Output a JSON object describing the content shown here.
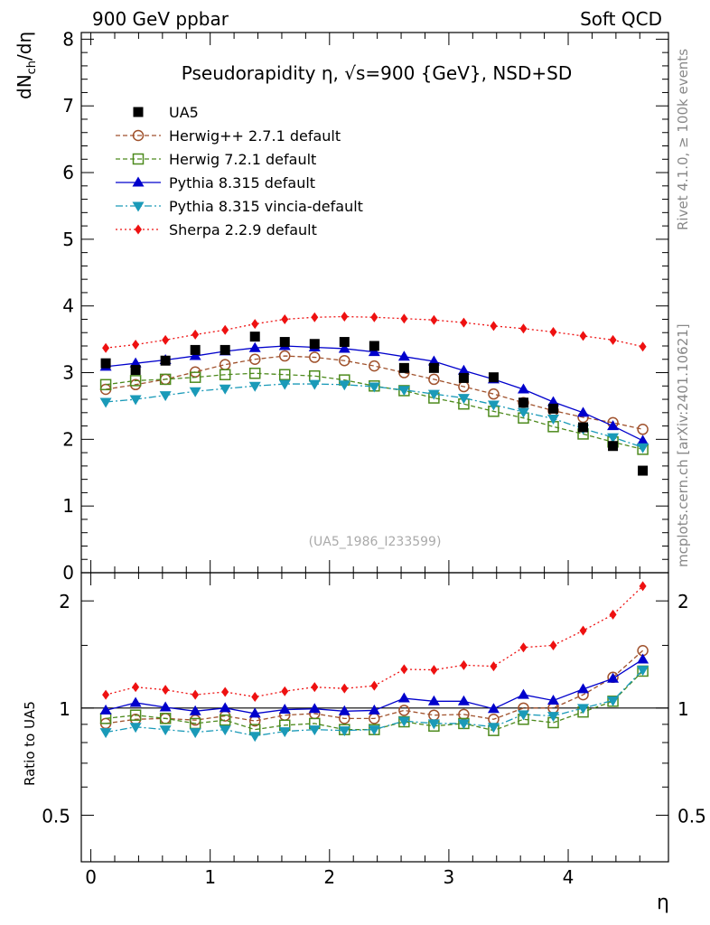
{
  "header": {
    "left": "900 GeV ppbar",
    "right": "Soft QCD"
  },
  "side_labels": {
    "rivet": "Rivet 4.1.0, ≥ 100k events",
    "mcplots": "mcplots.cern.ch [arXiv:2401.10621]"
  },
  "chart_data": {
    "type": "line",
    "title": "Pseudorapidity η, √s=900 {GeV}, NSD+SD",
    "watermark": "(UA5_1986_I233599)",
    "xlabel": "η",
    "ylabel": "dN",
    "ylabel_sub": "ch",
    "ylabel_tail": "/dη",
    "ratio_ylabel": "Ratio to UA5",
    "xlim": [
      -0.08,
      4.84
    ],
    "ylim": [
      0,
      8.1
    ],
    "x_ticks": [
      "0",
      "1",
      "2",
      "3",
      "4"
    ],
    "y_ticks": [
      "0",
      "1",
      "2",
      "3",
      "4",
      "5",
      "6",
      "7",
      "8"
    ],
    "ratio_ticks": [
      "2",
      "1",
      "0.5"
    ],
    "x": [
      0.125,
      0.375,
      0.625,
      0.875,
      1.125,
      1.375,
      1.625,
      1.875,
      2.125,
      2.375,
      2.625,
      2.875,
      3.125,
      3.375,
      3.625,
      3.875,
      4.125,
      4.375,
      4.625
    ],
    "series": [
      {
        "name": "UA5",
        "color": "#000000",
        "marker": "square",
        "dash": "none",
        "values": [
          3.14,
          3.04,
          3.18,
          3.34,
          3.34,
          3.54,
          3.46,
          3.43,
          3.46,
          3.4,
          3.07,
          3.07,
          2.92,
          2.93,
          2.55,
          2.46,
          2.18,
          1.9,
          1.53
        ]
      },
      {
        "name": "Herwig++ 2.7.1 default",
        "color": "#a0522d",
        "marker": "open-circle",
        "dash": "5,3",
        "values": [
          2.75,
          2.82,
          2.9,
          3.01,
          3.12,
          3.2,
          3.25,
          3.23,
          3.18,
          3.1,
          3.0,
          2.9,
          2.79,
          2.68,
          2.55,
          2.43,
          2.33,
          2.25,
          2.15
        ]
      },
      {
        "name": "Herwig 7.2.1 default",
        "color": "#4d8a1d",
        "marker": "open-square",
        "dash": "5,3",
        "values": [
          2.82,
          2.88,
          2.9,
          2.93,
          2.97,
          2.99,
          2.97,
          2.95,
          2.89,
          2.8,
          2.73,
          2.62,
          2.53,
          2.42,
          2.32,
          2.19,
          2.08,
          1.96,
          1.85
        ]
      },
      {
        "name": "Pythia 8.315 default",
        "color": "#0000cc",
        "marker": "triangle-up",
        "dash": "none",
        "values": [
          3.09,
          3.14,
          3.19,
          3.25,
          3.32,
          3.37,
          3.4,
          3.38,
          3.36,
          3.31,
          3.24,
          3.17,
          3.03,
          2.9,
          2.75,
          2.56,
          2.4,
          2.2,
          1.98
        ]
      },
      {
        "name": "Pythia 8.315 vincia-default",
        "color": "#1a9ab8",
        "marker": "triangle-down",
        "dash": "8,3,2,3",
        "values": [
          2.56,
          2.6,
          2.66,
          2.72,
          2.76,
          2.8,
          2.83,
          2.83,
          2.82,
          2.79,
          2.74,
          2.68,
          2.62,
          2.52,
          2.41,
          2.31,
          2.16,
          2.03,
          1.88
        ]
      },
      {
        "name": "Sherpa 2.2.9 default",
        "color": "#ee1111",
        "marker": "diamond",
        "dash": "2,3",
        "values": [
          3.37,
          3.42,
          3.49,
          3.57,
          3.64,
          3.73,
          3.8,
          3.83,
          3.84,
          3.83,
          3.81,
          3.79,
          3.75,
          3.7,
          3.66,
          3.61,
          3.55,
          3.49,
          3.39
        ]
      }
    ],
    "ratio": {
      "ylim_log": [
        0.37,
        2.4
      ],
      "series": [
        {
          "name": "Herwig++ 2.7.1 default",
          "values": [
            0.905,
            0.93,
            0.935,
            0.925,
            0.95,
            0.92,
            0.955,
            0.965,
            0.935,
            0.935,
            0.985,
            0.955,
            0.96,
            0.93,
            1.0,
            1.0,
            1.09,
            1.22,
            1.45
          ]
        },
        {
          "name": "Herwig 7.2.1 default",
          "values": [
            0.935,
            0.955,
            0.935,
            0.905,
            0.925,
            0.87,
            0.895,
            0.905,
            0.87,
            0.87,
            0.915,
            0.89,
            0.905,
            0.865,
            0.93,
            0.91,
            0.975,
            1.045,
            1.27
          ]
        },
        {
          "name": "Pythia 8.315 default",
          "values": [
            0.985,
            1.035,
            1.005,
            0.98,
            1.0,
            0.965,
            0.99,
            0.995,
            0.98,
            0.985,
            1.065,
            1.045,
            1.045,
            0.995,
            1.09,
            1.05,
            1.13,
            1.21,
            1.37
          ]
        },
        {
          "name": "Pythia 8.315 vincia-default",
          "values": [
            0.855,
            0.885,
            0.87,
            0.855,
            0.87,
            0.835,
            0.86,
            0.87,
            0.865,
            0.87,
            0.92,
            0.905,
            0.905,
            0.885,
            0.96,
            0.95,
            1.0,
            1.05,
            1.28
          ]
        },
        {
          "name": "Sherpa 2.2.9 default",
          "values": [
            1.09,
            1.145,
            1.125,
            1.09,
            1.11,
            1.075,
            1.115,
            1.145,
            1.135,
            1.155,
            1.285,
            1.28,
            1.32,
            1.31,
            1.48,
            1.5,
            1.65,
            1.83,
            2.2
          ]
        }
      ]
    }
  }
}
